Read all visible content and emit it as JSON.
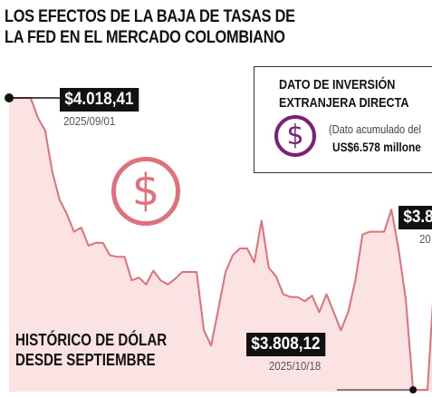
{
  "title_line1": "LOS EFECTOS DE LA BAJA DE TASAS DE",
  "title_line2": "LA FED EN EL MERCADO COLOMBIANO",
  "colors": {
    "line": "#e0707a",
    "fill": "#fbe3e3",
    "accent_purple": "#7b1f7a",
    "label_bg": "#111111"
  },
  "info_card": {
    "title_line1": "DATO DE INVERSIÓN",
    "title_line2": "EXTRANJERA DIRECTA",
    "icon": "dollar-icon",
    "note": "(Dato acumulado del",
    "value": "US$6.578 millone"
  },
  "history_label_line1": "HISTÓRICO DE DÓLAR",
  "history_label_line2": "DESDE SEPTIEMBRE",
  "decor_icon": "dollar-circle-icon",
  "callouts": {
    "start": {
      "value": "$4.018,41",
      "date": "2025/09/01"
    },
    "low": {
      "value": "$3.808,12",
      "date": "2025/10/18"
    },
    "right": {
      "value": "$3.8",
      "date": "20"
    }
  },
  "chart_data": {
    "type": "area",
    "title": "",
    "xlabel": "",
    "ylabel": "",
    "values": [
      4018.41,
      4018.41,
      4018.41,
      4018.41,
      4004,
      3995,
      3965,
      3945,
      3935,
      3922,
      3925,
      3912,
      3914,
      3914,
      3905,
      3904,
      3904,
      3887,
      3889,
      3884,
      3894,
      3887,
      3884,
      3888,
      3893,
      3893,
      3893,
      3851,
      3840,
      3866,
      3893,
      3905,
      3910,
      3910,
      3900,
      3930,
      3896,
      3890,
      3877,
      3875,
      3875,
      3872,
      3876,
      3864,
      3877,
      3864,
      3851,
      3864,
      3887,
      3920,
      3922,
      3922,
      3922,
      3938,
      3909,
      3873,
      3808.12,
      3808.12,
      3808.12,
      3892
    ]
  }
}
